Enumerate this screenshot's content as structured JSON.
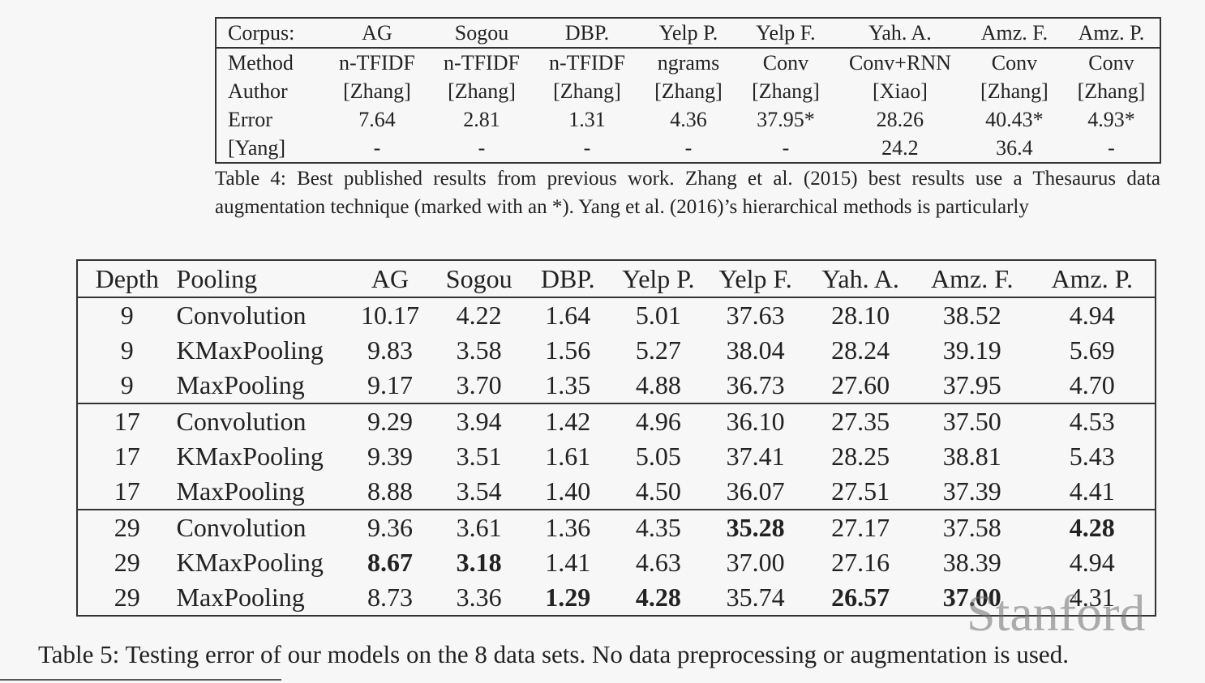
{
  "table4": {
    "header": [
      "Corpus:",
      "AG",
      "Sogou",
      "DBP.",
      "Yelp P.",
      "Yelp F.",
      "Yah. A.",
      "Amz. F.",
      "Amz. P."
    ],
    "rows": [
      [
        "Method",
        "n-TFIDF",
        "n-TFIDF",
        "n-TFIDF",
        "ngrams",
        "Conv",
        "Conv+RNN",
        "Conv",
        "Conv"
      ],
      [
        "Author",
        "[Zhang]",
        "[Zhang]",
        "[Zhang]",
        "[Zhang]",
        "[Zhang]",
        "[Xiao]",
        "[Zhang]",
        "[Zhang]"
      ],
      [
        "Error",
        "7.64",
        "2.81",
        "1.31",
        "4.36",
        "37.95*",
        "28.26",
        "40.43*",
        "4.93*"
      ],
      [
        "[Yang]",
        "-",
        "-",
        "-",
        "-",
        "-",
        "24.2",
        "36.4",
        "-"
      ]
    ],
    "caption": "Table 4: Best published results from previous work. Zhang et al. (2015) best results use a Thesaurus data augmentation technique (marked with an *). Yang et al. (2016)’s hierarchical methods is particularly"
  },
  "table5": {
    "header": [
      "Depth",
      "Pooling",
      "AG",
      "Sogou",
      "DBP.",
      "Yelp P.",
      "Yelp F.",
      "Yah. A.",
      "Amz. F.",
      "Amz. P."
    ],
    "rows": [
      [
        "9",
        "Convolution",
        "10.17",
        "4.22",
        "1.64",
        "5.01",
        "37.63",
        "28.10",
        "38.52",
        "4.94"
      ],
      [
        "9",
        "KMaxPooling",
        "9.83",
        "3.58",
        "1.56",
        "5.27",
        "38.04",
        "28.24",
        "39.19",
        "5.69"
      ],
      [
        "9",
        "MaxPooling",
        "9.17",
        "3.70",
        "1.35",
        "4.88",
        "36.73",
        "27.60",
        "37.95",
        "4.70"
      ],
      [
        "17",
        "Convolution",
        "9.29",
        "3.94",
        "1.42",
        "4.96",
        "36.10",
        "27.35",
        "37.50",
        "4.53"
      ],
      [
        "17",
        "KMaxPooling",
        "9.39",
        "3.51",
        "1.61",
        "5.05",
        "37.41",
        "28.25",
        "38.81",
        "5.43"
      ],
      [
        "17",
        "MaxPooling",
        "8.88",
        "3.54",
        "1.40",
        "4.50",
        "36.07",
        "27.51",
        "37.39",
        "4.41"
      ],
      [
        "29",
        "Convolution",
        "9.36",
        "3.61",
        "1.36",
        "4.35",
        "35.28",
        "27.17",
        "37.58",
        "4.28"
      ],
      [
        "29",
        "KMaxPooling",
        "8.67",
        "3.18",
        "1.41",
        "4.63",
        "37.00",
        "27.16",
        "38.39",
        "4.94"
      ],
      [
        "29",
        "MaxPooling",
        "8.73",
        "3.36",
        "1.29",
        "4.28",
        "35.74",
        "26.57",
        "37.00",
        "4.31"
      ]
    ],
    "bold_cells": [
      [
        6,
        6
      ],
      [
        6,
        9
      ],
      [
        7,
        2
      ],
      [
        7,
        3
      ],
      [
        8,
        4
      ],
      [
        8,
        5
      ],
      [
        8,
        7
      ],
      [
        8,
        8
      ]
    ],
    "caption": "Table 5: Testing error of our models on the 8 data sets. No data preprocessing or augmentation is used."
  },
  "watermark": "Stanford"
}
